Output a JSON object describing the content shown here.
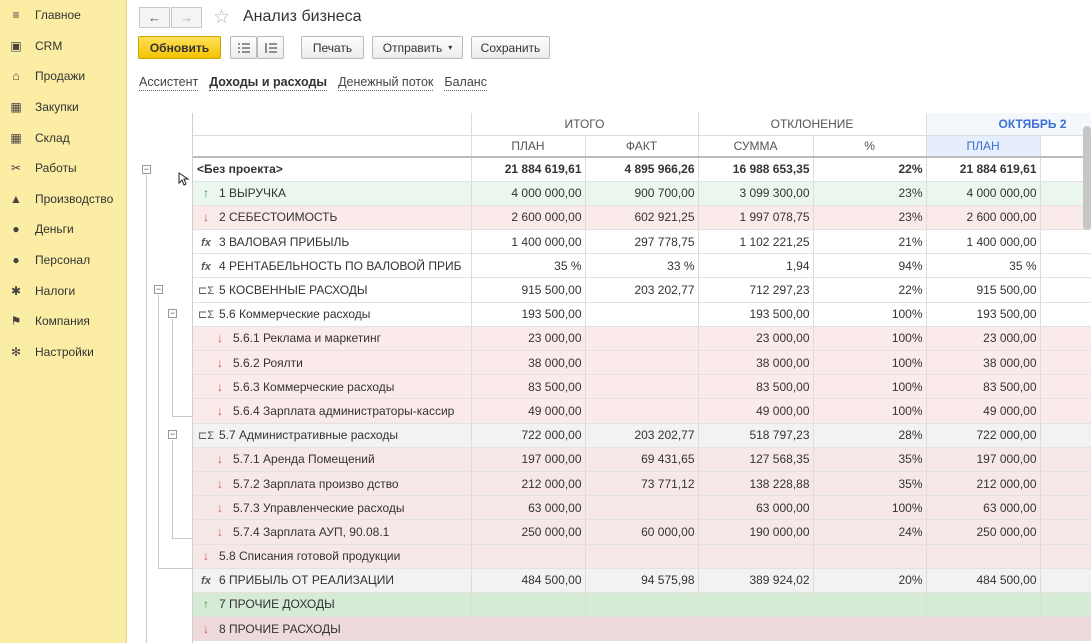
{
  "sidebar": {
    "items": [
      {
        "label": "Главное",
        "icon": "menu-icon",
        "glyph": "≡"
      },
      {
        "label": "CRM",
        "icon": "crm-icon",
        "glyph": "▣"
      },
      {
        "label": "Продажи",
        "icon": "sales-icon",
        "glyph": "⌂"
      },
      {
        "label": "Закупки",
        "icon": "purchases-icon",
        "glyph": "▦"
      },
      {
        "label": "Склад",
        "icon": "warehouse-icon",
        "glyph": "▦"
      },
      {
        "label": "Работы",
        "icon": "tools-icon",
        "glyph": "✂"
      },
      {
        "label": "Производство",
        "icon": "factory-icon",
        "glyph": "▲"
      },
      {
        "label": "Деньги",
        "icon": "money-icon",
        "glyph": "●"
      },
      {
        "label": "Персонал",
        "icon": "person-icon",
        "glyph": "●"
      },
      {
        "label": "Налоги",
        "icon": "taxes-icon",
        "glyph": "✱"
      },
      {
        "label": "Компания",
        "icon": "flag-icon",
        "glyph": "⚑"
      },
      {
        "label": "Настройки",
        "icon": "gear-icon",
        "glyph": "✻"
      }
    ]
  },
  "header": {
    "back": "←",
    "forward": "→",
    "star": "☆",
    "title": "Анализ бизнеса"
  },
  "toolbar": {
    "refresh_label": "Обновить",
    "print_label": "Печать",
    "send_label": "Отправить",
    "save_label": "Сохранить",
    "dropdown_arrow": "▾"
  },
  "tabs": [
    {
      "label": "Ассистент",
      "active": false
    },
    {
      "label": "Доходы и расходы",
      "active": true
    },
    {
      "label": "Денежный поток",
      "active": false
    },
    {
      "label": "Баланс",
      "active": false
    }
  ],
  "table": {
    "group_headers": {
      "total": "ИТОГО",
      "deviation": "ОТКЛОНЕНИЕ",
      "month": "ОКТЯБРЬ 2"
    },
    "sub_headers": {
      "plan": "ПЛАН",
      "fact": "ФАКТ",
      "sum": "СУММА",
      "pct": "%",
      "plan2": "ПЛАН"
    },
    "rows": [
      {
        "icon": "",
        "name": "<Без проекта>",
        "plan": "21 884 619,61",
        "fact": "4 895 966,26",
        "sum": "16 988 653,35",
        "pct": "22%",
        "plan2": "21 884 619,61",
        "style": "plain bold",
        "indent": 0
      },
      {
        "icon": "↑",
        "kind": "up",
        "name": "1   ВЫРУЧКА",
        "plan": "4 000 000,00",
        "fact": "900 700,00",
        "sum": "3 099 300,00",
        "pct": "23%",
        "plan2": "4 000 000,00",
        "style": "green",
        "indent": 0
      },
      {
        "icon": "↓",
        "kind": "dn",
        "name": "2   СЕБЕСТОИМОСТЬ",
        "plan": "2 600 000,00",
        "fact": "602 921,25",
        "sum": "1 997 078,75",
        "pct": "23%",
        "plan2": "2 600 000,00",
        "style": "red",
        "indent": 0
      },
      {
        "icon": "fx",
        "kind": "fx",
        "name": "3   ВАЛОВАЯ ПРИБЫЛЬ",
        "plan": "1 400 000,00",
        "fact": "297 778,75",
        "sum": "1 102 221,25",
        "pct": "21%",
        "plan2": "1 400 000,00",
        "style": "plain",
        "indent": 0
      },
      {
        "icon": "fx",
        "kind": "fx",
        "name": "4   РЕНТАБЕЛЬНОСТЬ ПО ВАЛОВОЙ ПРИБ",
        "plan": "35 %",
        "fact": "33 %",
        "sum": "1,94",
        "pct": "94%",
        "plan2": "35 %",
        "style": "plain",
        "indent": 0
      },
      {
        "icon": "⊏Σ",
        "kind": "grp",
        "name": "5   КОСВЕННЫЕ РАСХОДЫ",
        "plan": "915 500,00",
        "fact": "203 202,77",
        "sum": "712 297,23",
        "pct": "22%",
        "plan2": "915 500,00",
        "style": "plain",
        "indent": 0
      },
      {
        "icon": "⊏Σ",
        "kind": "grp",
        "name": "5.6   Коммерческие расходы",
        "plan": "193 500,00",
        "fact": "",
        "sum": "193 500,00",
        "pct": "100%",
        "plan2": "193 500,00",
        "style": "plain",
        "indent": 0
      },
      {
        "icon": "↓",
        "kind": "dn",
        "name": "5.6.1   Реклама и маркетинг",
        "plan": "23 000,00",
        "fact": "",
        "sum": "23 000,00",
        "pct": "100%",
        "plan2": "23 000,00",
        "style": "red",
        "indent": 1
      },
      {
        "icon": "↓",
        "kind": "dn",
        "name": "5.6.2   Роялти",
        "plan": "38 000,00",
        "fact": "",
        "sum": "38 000,00",
        "pct": "100%",
        "plan2": "38 000,00",
        "style": "red",
        "indent": 1
      },
      {
        "icon": "↓",
        "kind": "dn",
        "name": "5.6.3   Коммерческие расходы",
        "plan": "83 500,00",
        "fact": "",
        "sum": "83 500,00",
        "pct": "100%",
        "plan2": "83 500,00",
        "style": "red",
        "indent": 1
      },
      {
        "icon": "↓",
        "kind": "dn",
        "name": "5.6.4   Зарплата администраторы-кассир",
        "plan": "49 000,00",
        "fact": "",
        "sum": "49 000,00",
        "pct": "100%",
        "plan2": "49 000,00",
        "style": "red",
        "indent": 1
      },
      {
        "icon": "⊏Σ",
        "kind": "grp",
        "name": "5.7   Административные расходы",
        "plan": "722 000,00",
        "fact": "203 202,77",
        "sum": "518 797,23",
        "pct": "28%",
        "plan2": "722 000,00",
        "style": "grey",
        "indent": 0
      },
      {
        "icon": "↓",
        "kind": "dn",
        "name": "5.7.1   Аренда Помещений",
        "plan": "197 000,00",
        "fact": "69 431,65",
        "sum": "127 568,35",
        "pct": "35%",
        "plan2": "197 000,00",
        "style": "pink",
        "indent": 1
      },
      {
        "icon": "↓",
        "kind": "dn",
        "name": "5.7.2   Зарплата произво дство",
        "plan": "212 000,00",
        "fact": "73 771,12",
        "sum": "138 228,88",
        "pct": "35%",
        "plan2": "212 000,00",
        "style": "pink",
        "indent": 1
      },
      {
        "icon": "↓",
        "kind": "dn",
        "name": "5.7.3   Управленческие расходы",
        "plan": "63 000,00",
        "fact": "",
        "sum": "63 000,00",
        "pct": "100%",
        "plan2": "63 000,00",
        "style": "pink",
        "indent": 1
      },
      {
        "icon": "↓",
        "kind": "dn",
        "name": "5.7.4   Зарплата АУП, 90.08.1",
        "plan": "250 000,00",
        "fact": "60 000,00",
        "sum": "190 000,00",
        "pct": "24%",
        "plan2": "250 000,00",
        "style": "pink",
        "indent": 1
      },
      {
        "icon": "↓",
        "kind": "dn",
        "name": "5.8   Списания готовой продукции",
        "plan": "",
        "fact": "",
        "sum": "",
        "pct": "",
        "plan2": "",
        "style": "pink",
        "indent": 0
      },
      {
        "icon": "fx",
        "kind": "fx",
        "name": "6   ПРИБЫЛЬ ОТ РЕАЛИЗАЦИИ",
        "plan": "484 500,00",
        "fact": "94 575,98",
        "sum": "389 924,02",
        "pct": "20%",
        "plan2": "484 500,00",
        "style": "grey",
        "indent": 0
      },
      {
        "icon": "↑",
        "kind": "up",
        "name": "7   ПРОЧИЕ ДОХОДЫ",
        "plan": "",
        "fact": "",
        "sum": "",
        "pct": "",
        "plan2": "",
        "style": "dkgreen",
        "indent": 0
      },
      {
        "icon": "↓",
        "kind": "dn",
        "name": "8   ПРОЧИЕ РАСХОДЫ",
        "plan": "",
        "fact": "",
        "sum": "",
        "pct": "",
        "plan2": "",
        "style": "dkred",
        "indent": 0
      }
    ]
  },
  "colors": {
    "sidebar": "#fbeda3",
    "primary_button": "#f4c300",
    "income": "#2a9a4a",
    "expense": "#d54a4a",
    "month_header": "#3b6fd1"
  }
}
